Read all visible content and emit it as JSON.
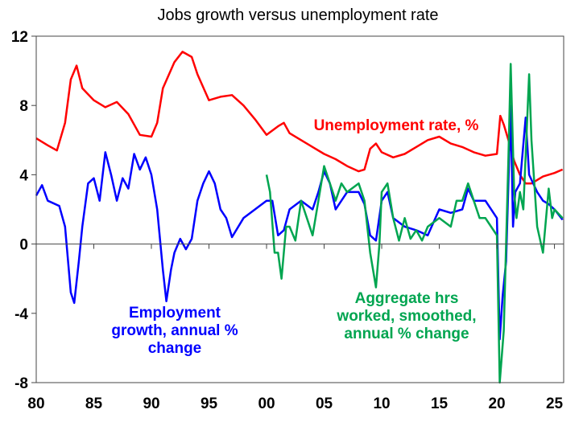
{
  "chart_data": {
    "type": "line",
    "title": "Jobs growth versus unemployment rate",
    "xlabel": "",
    "ylabel": "",
    "xlim": [
      1980,
      2025.8
    ],
    "ylim": [
      -8,
      12
    ],
    "x_ticks": [
      1980,
      1985,
      1990,
      1995,
      2000,
      2005,
      2010,
      2015,
      2020,
      2025
    ],
    "x_tick_labels": [
      "80",
      "85",
      "90",
      "95",
      "00",
      "05",
      "10",
      "15",
      "20",
      "25"
    ],
    "y_ticks": [
      -8,
      -4,
      0,
      4,
      8,
      12
    ],
    "y_tick_labels": [
      "-8",
      "-4",
      "0",
      "4",
      "8",
      "12"
    ],
    "grid": false,
    "legend": "none",
    "series": [
      {
        "name": "Unemployment rate, %",
        "label_lines": [
          "Unemployment rate, %"
        ],
        "color": "#FF0000",
        "x": [
          1980,
          1981,
          1981.8,
          1982.5,
          1983,
          1983.5,
          1984,
          1985,
          1986,
          1987,
          1988,
          1989,
          1990,
          1990.5,
          1991,
          1992,
          1992.7,
          1993.5,
          1994,
          1995,
          1996,
          1997,
          1998,
          1999,
          2000,
          2001,
          2001.5,
          2002,
          2003,
          2004,
          2005,
          2006,
          2007,
          2008,
          2008.5,
          2009,
          2009.5,
          2010,
          2011,
          2012,
          2013,
          2014,
          2015,
          2016,
          2017,
          2018,
          2019,
          2020,
          2020.3,
          2020.6,
          2021,
          2021.5,
          2022,
          2022.5,
          2023,
          2023.5,
          2024,
          2025,
          2025.7
        ],
        "y": [
          6.1,
          5.7,
          5.4,
          7.0,
          9.5,
          10.3,
          9.0,
          8.3,
          7.9,
          8.2,
          7.5,
          6.3,
          6.2,
          7.0,
          9.0,
          10.5,
          11.1,
          10.8,
          9.8,
          8.3,
          8.5,
          8.6,
          8.0,
          7.2,
          6.3,
          6.8,
          7.0,
          6.4,
          6.0,
          5.6,
          5.2,
          4.9,
          4.5,
          4.2,
          4.3,
          5.5,
          5.8,
          5.3,
          5.0,
          5.2,
          5.6,
          6.0,
          6.2,
          5.8,
          5.6,
          5.3,
          5.1,
          5.2,
          7.4,
          6.9,
          6.0,
          4.8,
          4.0,
          3.5,
          3.5,
          3.7,
          3.9,
          4.1,
          4.3
        ]
      },
      {
        "name": "Employment growth, annual % change",
        "label_lines": [
          "Employment",
          "growth, annual %",
          "change"
        ],
        "color": "#0000FF",
        "x": [
          1980,
          1980.5,
          1981,
          1982,
          1982.5,
          1983,
          1983.3,
          1983.7,
          1984,
          1984.5,
          1985,
          1985.5,
          1986,
          1986.5,
          1987,
          1987.5,
          1988,
          1988.5,
          1989,
          1989.5,
          1990,
          1990.5,
          1991,
          1991.3,
          1991.7,
          1992,
          1992.5,
          1993,
          1993.5,
          1994,
          1994.5,
          1995,
          1995.5,
          1996,
          1996.5,
          1997,
          1998,
          1999,
          2000,
          2000.5,
          2001,
          2001.5,
          2002,
          2003,
          2004,
          2004.5,
          2005,
          2005.5,
          2006,
          2007,
          2008,
          2008.5,
          2009,
          2009.5,
          2010,
          2010.5,
          2011,
          2012,
          2013,
          2014,
          2015,
          2016,
          2017,
          2017.5,
          2018,
          2019,
          2020,
          2020.25,
          2020.5,
          2020.8,
          2021.2,
          2021.4,
          2021.6,
          2022,
          2022.5,
          2022.8,
          2023.5,
          2024,
          2024.5,
          2025,
          2025.7
        ],
        "y": [
          2.8,
          3.4,
          2.5,
          2.2,
          1.0,
          -2.8,
          -3.4,
          -1.0,
          1.0,
          3.5,
          3.8,
          2.5,
          5.3,
          4.0,
          2.5,
          3.8,
          3.2,
          5.2,
          4.3,
          5.0,
          4.0,
          2.0,
          -1.5,
          -3.3,
          -1.5,
          -0.5,
          0.3,
          -0.3,
          0.3,
          2.5,
          3.5,
          4.2,
          3.5,
          2.0,
          1.5,
          0.4,
          1.5,
          2.0,
          2.5,
          2.5,
          0.5,
          0.8,
          2.0,
          2.5,
          2.0,
          3.0,
          4.2,
          3.5,
          2.0,
          3.0,
          3.0,
          2.3,
          0.5,
          0.2,
          2.5,
          3.0,
          1.5,
          1.0,
          0.8,
          0.5,
          2.0,
          1.8,
          2.0,
          3.2,
          2.5,
          2.5,
          1.5,
          -5.5,
          -3.0,
          -1.0,
          8.0,
          1.0,
          3.0,
          3.5,
          7.3,
          4.0,
          3.0,
          2.5,
          2.3,
          2.0,
          1.4
        ]
      },
      {
        "name": "Aggregate hrs worked, smoothed, annual % change",
        "label_lines": [
          "Aggregate hrs",
          "worked, smoothed,",
          "annual % change"
        ],
        "color": "#00A550",
        "x": [
          2000,
          2000.3,
          2000.7,
          2001,
          2001.3,
          2001.7,
          2002,
          2002.5,
          2003,
          2003.5,
          2004,
          2004.5,
          2005,
          2005.5,
          2006,
          2006.5,
          2007,
          2008,
          2008.5,
          2009,
          2009.5,
          2009.8,
          2010,
          2010.5,
          2011,
          2011.5,
          2012,
          2012.5,
          2013,
          2013.5,
          2014,
          2015,
          2016,
          2016.5,
          2017,
          2017.5,
          2018,
          2018.5,
          2019,
          2019.5,
          2020,
          2020.25,
          2020.6,
          2021,
          2021.2,
          2021.5,
          2021.7,
          2022,
          2022.3,
          2022.8,
          2023,
          2023.5,
          2024,
          2024.5,
          2024.8,
          2025,
          2025.7
        ],
        "y": [
          4.0,
          3.0,
          -0.5,
          -0.5,
          -2.0,
          1.0,
          1.0,
          0.2,
          2.5,
          1.5,
          0.5,
          2.5,
          4.5,
          3.5,
          2.5,
          3.5,
          3.0,
          3.5,
          2.5,
          -0.5,
          -2.5,
          0.0,
          3.0,
          3.5,
          1.5,
          0.2,
          1.5,
          0.3,
          0.8,
          0.2,
          1.0,
          1.5,
          1.0,
          2.5,
          2.5,
          3.5,
          2.5,
          1.5,
          1.5,
          1.0,
          0.5,
          -8.0,
          -5.0,
          5.0,
          10.4,
          3.0,
          1.5,
          3.0,
          2.0,
          9.8,
          6.0,
          1.0,
          -0.5,
          3.2,
          1.5,
          2.0,
          1.5
        ]
      }
    ]
  }
}
